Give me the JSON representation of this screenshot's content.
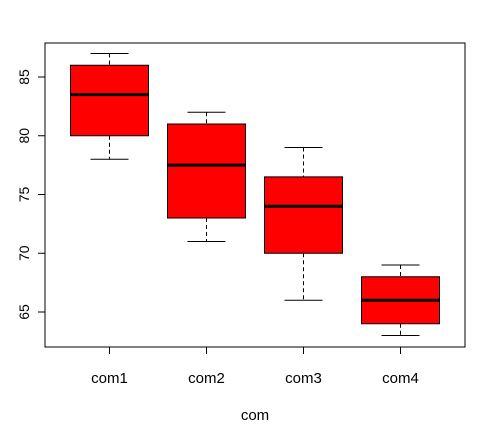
{
  "chart_data": {
    "type": "boxplot",
    "title": "",
    "xlabel": "com",
    "ylabel": "",
    "ylim": [
      62,
      88
    ],
    "yticks": [
      65,
      70,
      75,
      80,
      85
    ],
    "categories": [
      "com1",
      "com2",
      "com3",
      "com4"
    ],
    "boxes": [
      {
        "name": "com1",
        "min": 78,
        "q1": 80,
        "median": 83.5,
        "q3": 86,
        "max": 87
      },
      {
        "name": "com2",
        "min": 71,
        "q1": 73,
        "median": 77.5,
        "q3": 81,
        "max": 82
      },
      {
        "name": "com3",
        "min": 66,
        "q1": 70,
        "median": 74,
        "q3": 76.5,
        "max": 79
      },
      {
        "name": "com4",
        "min": 63,
        "q1": 64,
        "median": 66,
        "q3": 68,
        "max": 69
      }
    ],
    "box_color": "#ff0000",
    "grid": false
  }
}
